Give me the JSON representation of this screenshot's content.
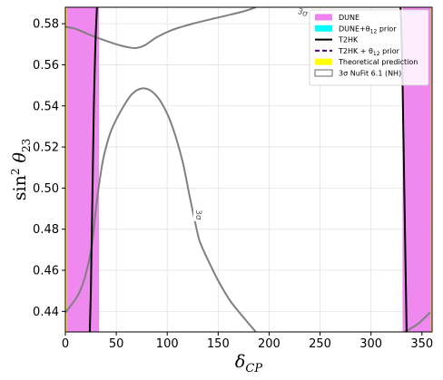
{
  "chart_data": {
    "type": "line",
    "xlabel": "δ_CP",
    "ylabel": "sin² θ₂₃",
    "xlim": [
      0,
      360
    ],
    "ylim": [
      0.43,
      0.588
    ],
    "x_ticks": [
      "0",
      "50",
      "100",
      "150",
      "200",
      "250",
      "300",
      "350"
    ],
    "y_ticks": [
      "0.44",
      "0.46",
      "0.48",
      "0.50",
      "0.52",
      "0.54",
      "0.56",
      "0.58"
    ],
    "grid": true,
    "legend_position": "top-right",
    "legend": [
      {
        "label": "DUNE",
        "style": "patch",
        "color": "#ee82ee"
      },
      {
        "label": "DUNE+θ12 prior",
        "style": "patch",
        "color": "#00ffff"
      },
      {
        "label": "T2HK",
        "style": "solid-line",
        "color": "#000000"
      },
      {
        "label": "T2HK + θ12 prior",
        "style": "dashed-line",
        "color": "#4b0082"
      },
      {
        "label": "Theoretical prediction",
        "style": "patch",
        "color": "#ffff00"
      },
      {
        "label": "3σ NuFit 6.1 (NH)",
        "style": "outline-patch",
        "color": "#808080"
      }
    ],
    "regions": {
      "dune_left": {
        "x": [
          0,
          33
        ],
        "color": "#ee82ee"
      },
      "dune_right": {
        "x": [
          331,
          360
        ],
        "color": "#ee82ee"
      },
      "theory_left": {
        "x": [
          0,
          1
        ],
        "color": "#ffff00"
      },
      "theory_right": {
        "x": [
          359,
          360
        ],
        "color": "#ffff00"
      }
    },
    "t2hk_lines": [
      {
        "points": [
          [
            24,
            0.43
          ],
          [
            25,
            0.45
          ],
          [
            26,
            0.48
          ],
          [
            27,
            0.51
          ],
          [
            28,
            0.54
          ],
          [
            29.5,
            0.57
          ],
          [
            31,
            0.588
          ]
        ]
      },
      {
        "points": [
          [
            335,
            0.43
          ],
          [
            334,
            0.46
          ],
          [
            333,
            0.49
          ],
          [
            332,
            0.52
          ],
          [
            331,
            0.55
          ],
          [
            330,
            0.575
          ],
          [
            329,
            0.588
          ]
        ]
      }
    ],
    "nufit_contours": [
      {
        "points": [
          [
            0,
            0.5785
          ],
          [
            10,
            0.5775
          ],
          [
            22,
            0.575
          ],
          [
            35,
            0.5725
          ],
          [
            50,
            0.57
          ],
          [
            62,
            0.5685
          ],
          [
            70,
            0.5682
          ],
          [
            78,
            0.5695
          ],
          [
            90,
            0.5735
          ],
          [
            105,
            0.577
          ],
          [
            125,
            0.58
          ],
          [
            150,
            0.583
          ],
          [
            175,
            0.586
          ],
          [
            187,
            0.588
          ]
        ]
      },
      {
        "points": [
          [
            0,
            0.4395
          ],
          [
            8,
            0.4445
          ],
          [
            14,
            0.4495
          ],
          [
            20,
            0.458
          ],
          [
            26,
            0.472
          ],
          [
            30,
            0.49
          ],
          [
            34,
            0.505
          ],
          [
            38,
            0.516
          ],
          [
            45,
            0.528
          ],
          [
            55,
            0.538
          ],
          [
            65,
            0.5455
          ],
          [
            75,
            0.5485
          ],
          [
            85,
            0.547
          ],
          [
            95,
            0.541
          ],
          [
            105,
            0.53
          ],
          [
            115,
            0.513
          ],
          [
            122,
            0.496
          ],
          [
            128,
            0.482
          ],
          [
            132,
            0.474
          ],
          [
            140,
            0.465
          ],
          [
            150,
            0.455
          ],
          [
            162,
            0.445
          ],
          [
            175,
            0.437
          ],
          [
            187,
            0.43
          ]
        ]
      },
      {
        "points": [
          [
            333,
            0.43
          ],
          [
            345,
            0.4335
          ],
          [
            354,
            0.4375
          ],
          [
            358,
            0.4395
          ]
        ]
      }
    ],
    "annotations": [
      {
        "text": "3σ",
        "x": 131,
        "y": 0.487
      },
      {
        "text": "3σ",
        "x": 233,
        "y": 0.5855
      }
    ]
  }
}
